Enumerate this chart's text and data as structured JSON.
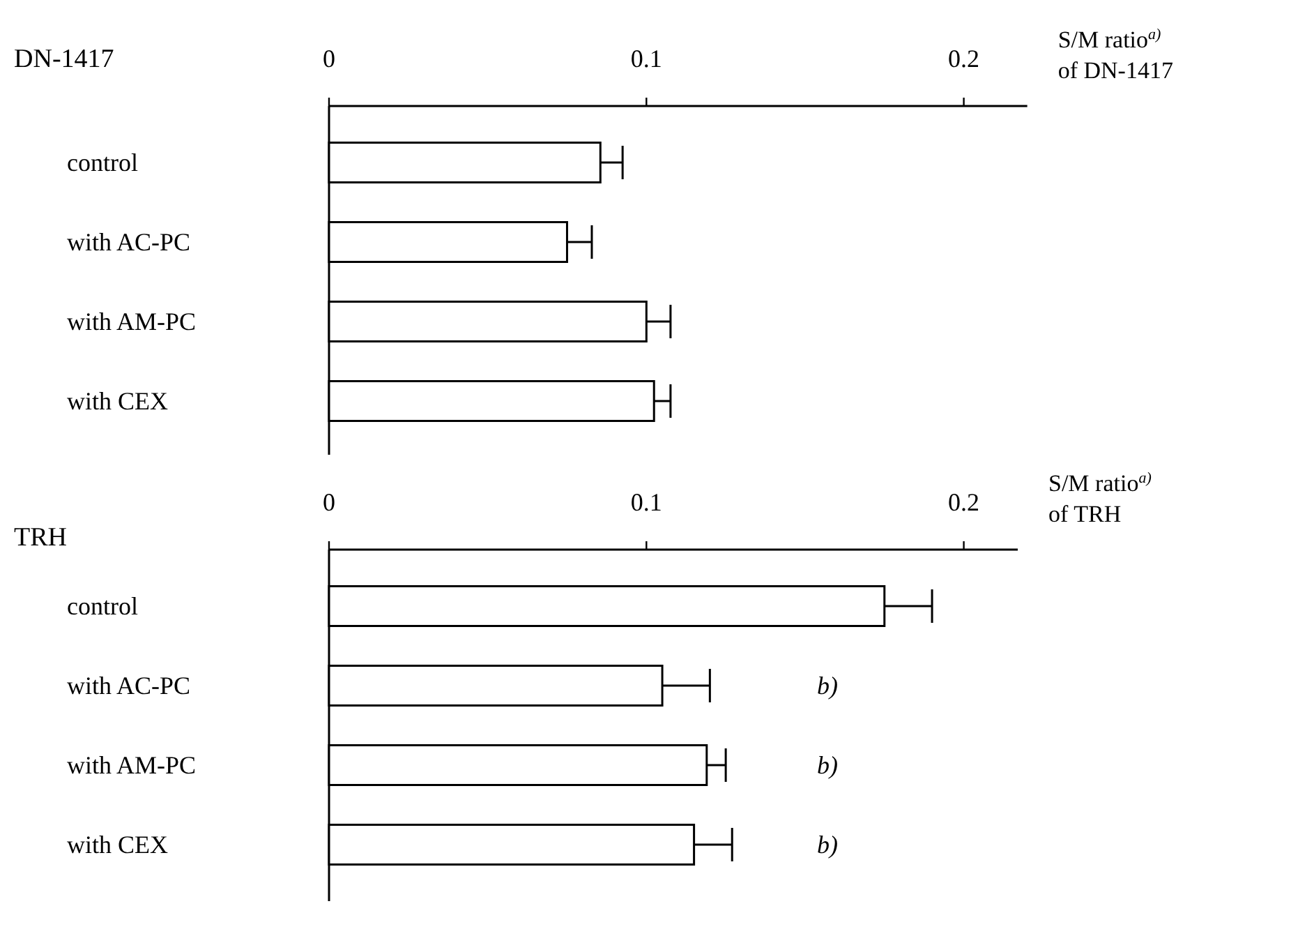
{
  "chart_data": [
    {
      "type": "bar",
      "orientation": "horizontal",
      "title": "DN-1417",
      "xlabel": "S/M ratio$^{a)}$\nof DN-1417",
      "categories": [
        "control",
        "with AC-PC",
        "with AM-PC",
        "with CEX"
      ],
      "values": [
        0.0855,
        0.075,
        0.1,
        0.1024
      ],
      "errors": [
        [
          0.0855,
          0.0925
        ],
        [
          0.075,
          0.0828
        ],
        [
          0.1,
          0.1076
        ],
        [
          0.1024,
          0.1076
        ]
      ],
      "color": "#ffffff",
      "xlim": [
        0,
        0.22
      ],
      "xticks": [
        0,
        0.1,
        0.2
      ]
    },
    {
      "type": "bar",
      "orientation": "horizontal",
      "title": "TRH",
      "xlabel": "S/M ratio$^{a)}$\nof TRH",
      "categories": [
        "control",
        "with AC-PC",
        "with AM-PC",
        "with CEX"
      ],
      "values": [
        0.175,
        0.105,
        0.119,
        0.115
      ],
      "errors": [
        [
          0.175,
          0.19
        ],
        [
          0.105,
          0.12
        ],
        [
          0.119,
          0.125
        ],
        [
          0.115,
          0.127
        ]
      ],
      "color": "#ffffff",
      "xlim": [
        0,
        0.217
      ],
      "xticks": [
        0,
        0.1,
        0.2
      ],
      "annotations": [
        "b)",
        "b)",
        "b)"
      ]
    }
  ]
}
